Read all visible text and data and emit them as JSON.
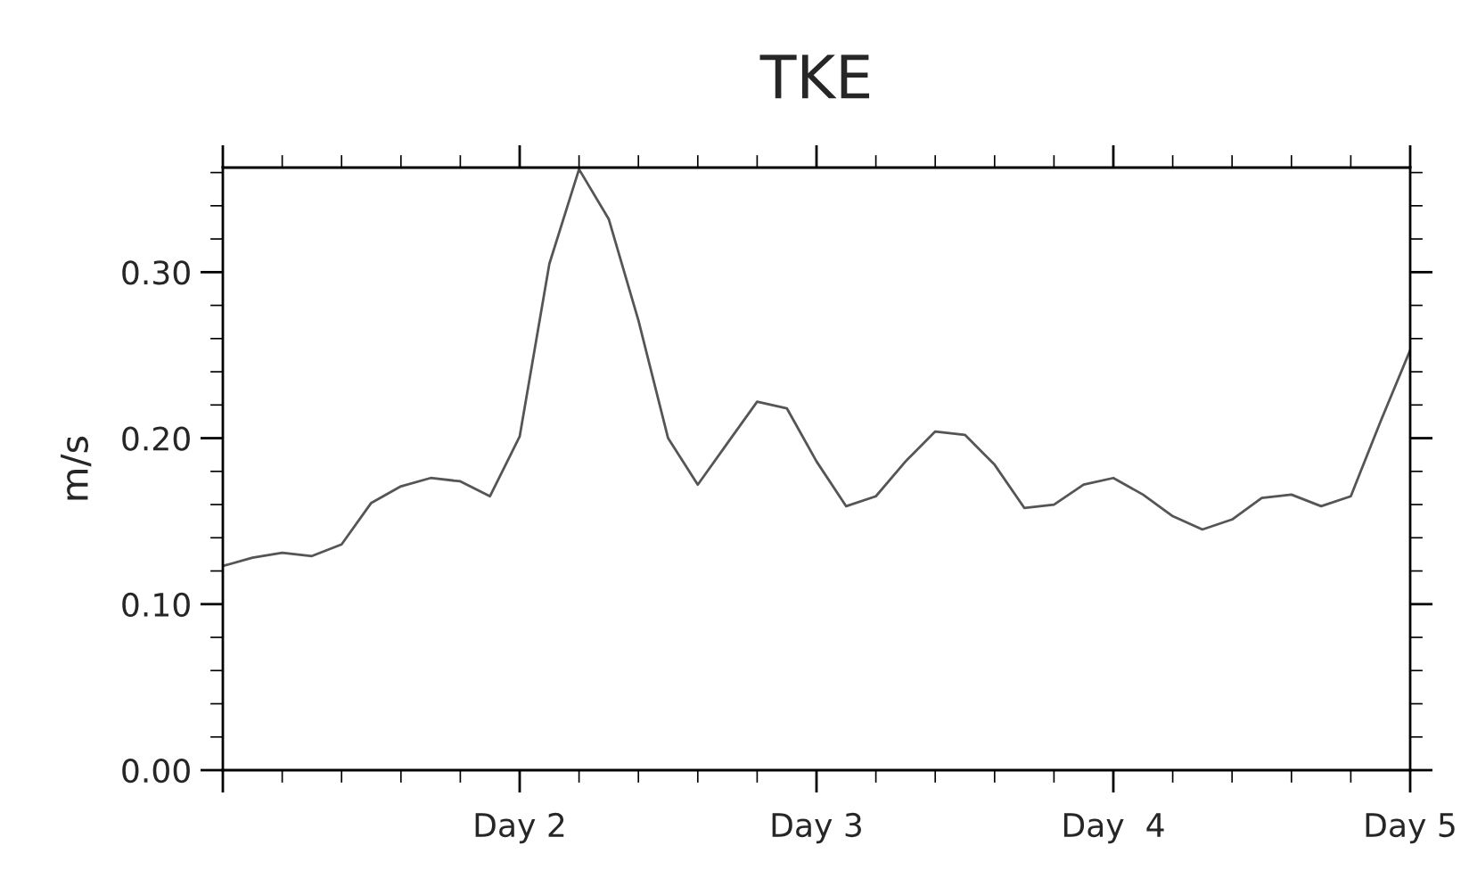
{
  "chart_data": {
    "type": "line",
    "title": "TKE",
    "ylabel": "m/s",
    "categories": [
      null,
      null,
      null,
      null,
      null,
      null,
      null,
      null,
      null,
      null,
      "Day 2",
      null,
      null,
      null,
      null,
      null,
      null,
      null,
      null,
      null,
      "Day 3",
      null,
      null,
      null,
      null,
      null,
      null,
      null,
      null,
      null,
      "Day  4",
      null,
      null,
      null,
      null,
      null,
      null,
      null,
      null,
      null,
      "Day 5"
    ],
    "series": [
      {
        "color": "#555555",
        "values": [
          0.123,
          0.128,
          0.131,
          0.129,
          0.136,
          0.161,
          0.171,
          0.176,
          0.174,
          0.165,
          0.201,
          0.305,
          0.362,
          0.332,
          0.271,
          0.2,
          0.172,
          0.197,
          0.222,
          0.218,
          0.186,
          0.159,
          0.165,
          0.186,
          0.204,
          0.202,
          0.184,
          0.158,
          0.16,
          0.172,
          0.176,
          0.166,
          0.153,
          0.145,
          0.151,
          0.164,
          0.166,
          0.159,
          0.165,
          0.21,
          0.253
        ]
      }
    ],
    "ylim": [
      0,
      0.363
    ],
    "yticks": [
      {
        "value": 0,
        "label": "0.00"
      },
      {
        "value": 0.1,
        "label": "0.10"
      },
      {
        "value": 0.2,
        "label": "0.20"
      },
      {
        "value": 0.3,
        "label": "0.30"
      }
    ],
    "grid": false,
    "legend": false,
    "marker": "none",
    "line_style": "solid"
  }
}
